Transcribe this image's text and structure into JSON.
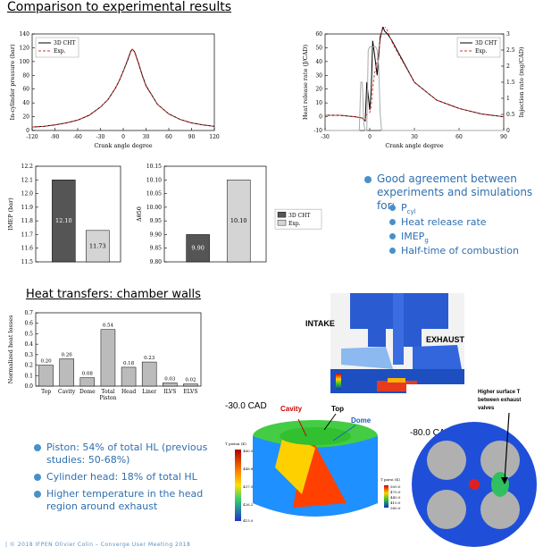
{
  "header": {
    "title": "Comparison to experimental results"
  },
  "section2": {
    "title": "Heat transfers: chamber walls"
  },
  "right_bullets": {
    "main": "Good agreement between experiments and simulations for:",
    "main_l1": "Good agreement between",
    "main_l2": "experiments and simulations for:",
    "items": [
      "P",
      "Heat release rate",
      "IMEP",
      "Half-time of combustion"
    ],
    "p_sub": "cyl",
    "imep_sub": "g"
  },
  "bottom_bullets": {
    "b1_l1": "Piston: 54% of total HL (previous",
    "b1_l2": "studies: 50-68%)",
    "b2": "Cylinder head: 18% of total HL",
    "b3_l1": "Higher temperature in the head",
    "b3_l2": "region around exhaust"
  },
  "images": {
    "intake": "INTAKE",
    "exhaust": "EXHAUST",
    "cad1": "-30.0 CAD",
    "cad2": "-80.0 CAD",
    "cavity": "Cavity",
    "top": "Top",
    "dome": "Dome",
    "higher_note_l1": "Higher surface T",
    "higher_note_l2": "between exhaust",
    "higher_note_l3": "valves",
    "tpiston_label": "T piston (K)",
    "tpiston_ticks": [
      "460.0",
      "448.8",
      "437.5",
      "426.2",
      "415.0"
    ],
    "tparoi_label": "T paroi (K)",
    "tparoi_ticks": [
      "500.0",
      "470.0",
      "440.0",
      "410.0",
      "380.0"
    ]
  },
  "footer": {
    "text": "| © 2018 IFPEN    Olivier Colin – Converge User Meeting 2018"
  },
  "chart_data": [
    {
      "type": "line",
      "title": "",
      "xlabel": "Crank angle degree",
      "ylabel": "In-cylinder pressure (bar)",
      "xlim": [
        -120,
        120
      ],
      "ylim": [
        0,
        140
      ],
      "xticks": [
        -120,
        -90,
        -60,
        -30,
        0,
        30,
        60,
        90,
        120
      ],
      "yticks": [
        0,
        20,
        40,
        60,
        80,
        100,
        120,
        140
      ],
      "legend": "top-left",
      "series": [
        {
          "name": "3D CHT",
          "style": "solid",
          "color": "#000000",
          "x": [
            -120,
            -105,
            -90,
            -75,
            -60,
            -45,
            -30,
            -20,
            -10,
            -5,
            0,
            5,
            10,
            12,
            15,
            20,
            25,
            30,
            45,
            60,
            75,
            90,
            105,
            120
          ],
          "y": [
            5,
            6,
            8,
            11,
            15,
            22,
            34,
            45,
            62,
            73,
            86,
            100,
            115,
            118,
            114,
            98,
            80,
            65,
            38,
            24,
            16,
            11,
            8,
            6
          ]
        },
        {
          "name": "Exp.",
          "style": "dashed",
          "color": "#e03030",
          "x": [
            -120,
            -105,
            -90,
            -75,
            -60,
            -45,
            -30,
            -20,
            -10,
            -5,
            0,
            5,
            10,
            12,
            15,
            20,
            25,
            30,
            45,
            60,
            75,
            90,
            105,
            120
          ],
          "y": [
            5,
            6,
            8,
            11,
            15,
            22,
            34,
            45,
            62,
            73,
            86,
            101,
            116,
            118,
            113,
            97,
            79,
            64,
            38,
            24,
            16,
            11,
            8,
            6
          ]
        }
      ]
    },
    {
      "type": "line",
      "title": "",
      "xlabel": "Crank angle degree",
      "ylabel": "Heat release rate (J/CAD)",
      "ylabel_right": "Injection rate (mg/CAD)",
      "xlim": [
        -30,
        90
      ],
      "ylim": [
        -10,
        60
      ],
      "ylim_right": [
        0,
        3
      ],
      "xticks": [
        -30,
        0,
        30,
        60,
        90
      ],
      "yticks": [
        -10,
        0,
        10,
        20,
        30,
        40,
        50,
        60
      ],
      "yticks_right": [
        0,
        0.5,
        1,
        1.5,
        2,
        2.5,
        3
      ],
      "legend": "top-right",
      "series": [
        {
          "name": "3D CHT",
          "style": "solid",
          "color": "#000000",
          "x": [
            -30,
            -20,
            -10,
            -5,
            -3,
            -2,
            0,
            1,
            2,
            3,
            5,
            7,
            9,
            10,
            12,
            15,
            20,
            30,
            45,
            60,
            75,
            90
          ],
          "y": [
            1,
            1,
            0,
            -1,
            -3,
            25,
            5,
            20,
            55,
            47,
            30,
            58,
            65,
            62,
            60,
            55,
            45,
            25,
            12,
            6,
            2,
            0
          ]
        },
        {
          "name": "Exp.",
          "style": "dashed",
          "color": "#e03030",
          "x": [
            -30,
            -20,
            -10,
            -5,
            -3,
            -2,
            0,
            1,
            2,
            3,
            5,
            7,
            9,
            10,
            12,
            15,
            20,
            30,
            45,
            60,
            75,
            90
          ],
          "y": [
            1,
            1,
            0,
            -1,
            -2,
            2,
            3,
            8,
            20,
            30,
            40,
            55,
            68,
            66,
            62,
            54,
            44,
            25,
            12,
            6,
            2,
            0
          ]
        },
        {
          "name": "Injection",
          "style": "solid",
          "color": "#aaaaaa",
          "axis": "right",
          "x": [
            -30,
            -7,
            -6,
            -5,
            -4,
            -3,
            -2,
            -1,
            0,
            1,
            2,
            3,
            4,
            5,
            6,
            7,
            8,
            9,
            10,
            11,
            12,
            90
          ],
          "y": [
            0,
            0,
            1.5,
            1.5,
            0.2,
            0,
            0,
            2.5,
            2.6,
            2.6,
            2.6,
            2.6,
            2.6,
            2.5,
            2.0,
            0.5,
            0,
            0,
            0,
            0,
            0,
            0
          ]
        }
      ]
    },
    {
      "type": "bar",
      "title": "",
      "xlabel": "",
      "ylabel": "IMEP (bar)",
      "ylim": [
        11.5,
        12.2
      ],
      "yticks": [
        11.5,
        11.6,
        11.7,
        11.8,
        11.9,
        12.0,
        12.1,
        12.2
      ],
      "categories": [
        "3D CHT",
        "Exp."
      ],
      "values": [
        12.1,
        11.73
      ],
      "labels": [
        "12.10",
        "11.73"
      ],
      "colors": [
        "#555555",
        "#d4d4d4"
      ]
    },
    {
      "type": "bar",
      "title": "",
      "xlabel": "",
      "ylabel": "Δθ50",
      "ylim": [
        9.8,
        10.15
      ],
      "yticks": [
        9.8,
        9.85,
        9.9,
        9.95,
        10.0,
        10.05,
        10.1,
        10.15
      ],
      "categories": [
        "3D CHT",
        "Exp."
      ],
      "values": [
        9.9,
        10.1
      ],
      "labels": [
        "9.90",
        "10.10"
      ],
      "colors": [
        "#555555",
        "#d4d4d4"
      ],
      "legend": "right",
      "legend_entries": [
        "3D CHT",
        "Exp."
      ]
    },
    {
      "type": "bar",
      "title": "",
      "xlabel": "",
      "ylabel": "Normalized heat losses",
      "ylim": [
        0,
        0.7
      ],
      "yticks": [
        0,
        0.1,
        0.2,
        0.3,
        0.4,
        0.5,
        0.6,
        0.7
      ],
      "categories": [
        "Top",
        "Cavity",
        "Dome",
        "Total Piston",
        "Head",
        "Liner",
        "ILVS",
        "ELVS"
      ],
      "values": [
        0.2,
        0.26,
        0.08,
        0.54,
        0.18,
        0.23,
        0.03,
        0.02
      ],
      "labels": [
        "0.20",
        "0.26",
        "0.08",
        "0.54",
        "0.18",
        "0.23",
        "0.03",
        "0.02"
      ],
      "colors": [
        "#bbbbbb"
      ]
    }
  ]
}
